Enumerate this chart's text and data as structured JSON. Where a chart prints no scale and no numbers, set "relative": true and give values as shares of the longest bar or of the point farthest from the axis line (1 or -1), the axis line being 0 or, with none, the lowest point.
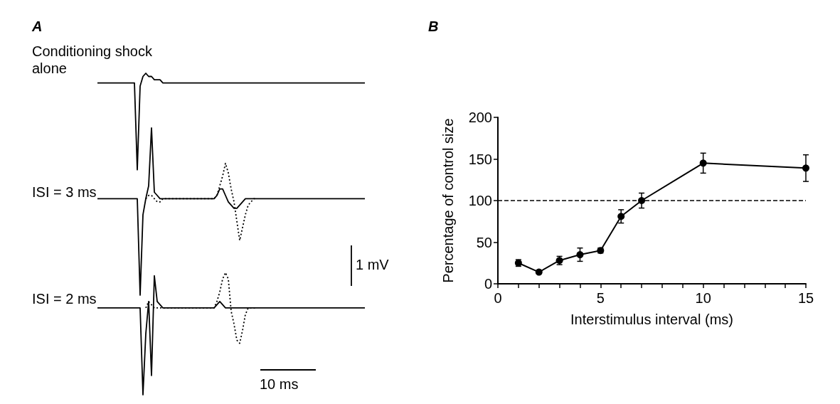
{
  "chart_data": [
    {
      "type": "line",
      "title": "A",
      "relative": true,
      "annotations": [
        "Conditioning shock alone",
        "ISI = 3 ms",
        "ISI = 2 ms",
        "1 mV",
        "10 ms"
      ],
      "categories": [
        null,
        null,
        null,
        null,
        null,
        null,
        null,
        null,
        null,
        null,
        null,
        null,
        null,
        null,
        null,
        null,
        null,
        null,
        null,
        null,
        null,
        null,
        null,
        null,
        null,
        null,
        null,
        null,
        null,
        null,
        null,
        null,
        null,
        null,
        null,
        null,
        null,
        null,
        null,
        null,
        null,
        null,
        null,
        null,
        null,
        null,
        null,
        null,
        null,
        null,
        null,
        null,
        null,
        null,
        null,
        null,
        null,
        null,
        null,
        null,
        null,
        null,
        null,
        null,
        null,
        null,
        null,
        null,
        null,
        null,
        null,
        null,
        null,
        null,
        null,
        null,
        null,
        null,
        null,
        null,
        null,
        null,
        null,
        null,
        null,
        null,
        null,
        null,
        null,
        null,
        null,
        null,
        null,
        null,
        null
      ],
      "series": [
        {
          "color": "#000000",
          "line_style": "solid",
          "values": [
            0.97,
            0.97,
            0.97,
            0.97,
            0.97,
            0.97,
            0.97,
            0.97,
            0.97,
            0.97,
            0.97,
            0.97,
            0.97,
            0.97,
            0.7,
            0.96,
            0.99,
            1,
            0.99,
            0.99,
            0.98,
            0.98,
            0.98,
            0.97,
            0.97,
            0.97,
            0.97,
            0.97,
            0.97,
            0.97,
            0.97,
            0.97,
            0.97,
            0.97,
            0.97,
            0.97,
            0.97,
            0.97,
            0.97,
            0.97,
            0.97,
            0.97,
            0.97,
            0.97,
            0.97,
            0.97,
            0.97,
            0.97,
            0.97,
            0.97,
            0.97,
            0.97,
            0.97,
            0.97,
            0.97,
            0.97,
            0.97,
            0.97,
            0.97,
            0.97,
            0.97,
            0.97,
            0.97,
            0.97,
            0.97,
            0.97,
            0.97,
            0.97,
            0.97,
            0.97,
            0.97,
            0.97,
            0.97,
            0.97,
            0.97,
            0.97,
            0.97,
            0.97,
            0.97,
            0.97,
            0.97,
            0.97,
            0.97,
            0.97,
            0.97,
            0.97,
            0.97,
            0.97,
            0.97,
            0.97,
            0.97,
            0.97,
            0.97,
            0.97,
            0.97
          ]
        },
        {
          "color": "#000000",
          "line_style": "solid",
          "values": [
            0.61,
            0.61,
            0.61,
            0.61,
            0.61,
            0.61,
            0.61,
            0.61,
            0.61,
            0.61,
            0.61,
            0.61,
            0.61,
            0.61,
            0.61,
            0.31,
            0.56,
            0.61,
            0.65,
            0.83,
            0.63,
            0.62,
            0.61,
            0.61,
            0.61,
            0.61,
            0.61,
            0.61,
            0.61,
            0.61,
            0.61,
            0.61,
            0.61,
            0.61,
            0.61,
            0.61,
            0.61,
            0.61,
            0.61,
            0.61,
            0.61,
            0.61,
            0.62,
            0.64,
            0.64,
            0.62,
            0.6,
            0.59,
            0.58,
            0.58,
            0.59,
            0.6,
            0.61,
            0.61,
            0.61,
            0.61,
            0.61,
            0.61,
            0.61,
            0.61,
            0.61,
            0.61,
            0.61,
            0.61,
            0.61,
            0.61,
            0.61,
            0.61,
            0.61,
            0.61,
            0.61,
            0.61,
            0.61,
            0.61,
            0.61,
            0.61,
            0.61,
            0.61,
            0.61,
            0.61,
            0.61,
            0.61,
            0.61,
            0.61,
            0.61,
            0.61,
            0.61,
            0.61,
            0.61,
            0.61,
            0.61,
            0.61,
            0.61,
            0.61,
            0.61
          ]
        },
        {
          "color": "#000000",
          "line_style": "dotted",
          "values": [
            null,
            null,
            null,
            null,
            null,
            null,
            null,
            null,
            null,
            null,
            null,
            null,
            null,
            null,
            null,
            null,
            null,
            0.61,
            0.62,
            0.62,
            0.61,
            0.6,
            0.6,
            0.61,
            0.61,
            0.61,
            0.61,
            0.61,
            0.61,
            0.61,
            0.61,
            0.61,
            0.61,
            0.61,
            0.61,
            0.61,
            0.61,
            0.61,
            0.61,
            0.61,
            0.61,
            0.61,
            0.62,
            0.65,
            0.68,
            0.72,
            0.69,
            0.64,
            0.6,
            0.54,
            0.48,
            0.52,
            0.56,
            0.59,
            0.6,
            0.61,
            0.61,
            null,
            null,
            null,
            null,
            null,
            null,
            null,
            null,
            null,
            null,
            null,
            null,
            null,
            null,
            null,
            null,
            null,
            null,
            null,
            null,
            null,
            null,
            null,
            null,
            null,
            null,
            null,
            null,
            null,
            null,
            null,
            null,
            null,
            null,
            null,
            null,
            null,
            null
          ]
        },
        {
          "color": "#000000",
          "line_style": "solid",
          "values": [
            0.27,
            0.27,
            0.27,
            0.27,
            0.27,
            0.27,
            0.27,
            0.27,
            0.27,
            0.27,
            0.27,
            0.27,
            0.27,
            0.27,
            0.27,
            0.27,
            0,
            0.19,
            0.29,
            0.06,
            0.37,
            0.29,
            0.28,
            0.27,
            0.27,
            0.27,
            0.27,
            0.27,
            0.27,
            0.27,
            0.27,
            0.27,
            0.27,
            0.27,
            0.27,
            0.27,
            0.27,
            0.27,
            0.27,
            0.27,
            0.27,
            0.27,
            0.28,
            0.29,
            0.28,
            0.27,
            0.27,
            0.27,
            0.27,
            0.27,
            0.27,
            0.27,
            0.27,
            0.27,
            0.27,
            0.27,
            0.27,
            0.27,
            0.27,
            0.27,
            0.27,
            0.27,
            0.27,
            0.27,
            0.27,
            0.27,
            0.27,
            0.27,
            0.27,
            0.27,
            0.27,
            0.27,
            0.27,
            0.27,
            0.27,
            0.27,
            0.27,
            0.27,
            0.27,
            0.27,
            0.27,
            0.27,
            0.27,
            0.27,
            0.27,
            0.27,
            0.27,
            0.27,
            0.27,
            0.27,
            0.27,
            0.27,
            0.27,
            0.27,
            0.27
          ]
        },
        {
          "color": "#000000",
          "line_style": "dotted",
          "values": [
            null,
            null,
            null,
            null,
            null,
            null,
            null,
            null,
            null,
            null,
            null,
            null,
            null,
            null,
            null,
            null,
            null,
            0.27,
            0.29,
            0.28,
            0.27,
            0.27,
            0.27,
            0.27,
            0.27,
            0.27,
            0.27,
            0.27,
            0.27,
            0.27,
            0.27,
            0.27,
            0.27,
            0.27,
            0.27,
            0.27,
            0.27,
            0.27,
            0.27,
            0.27,
            0.27,
            0.27,
            0.29,
            0.32,
            0.36,
            0.38,
            0.36,
            0.26,
            0.22,
            0.17,
            0.16,
            0.2,
            0.25,
            0.27,
            0.27,
            0.27,
            0.27,
            null,
            null,
            null,
            null,
            null,
            null,
            null,
            null,
            null,
            null,
            null,
            null,
            null,
            null,
            null,
            null,
            null,
            null,
            null,
            null,
            null,
            null,
            null,
            null,
            null,
            null,
            null,
            null,
            null,
            null,
            null,
            null,
            null,
            null,
            null,
            null,
            null,
            null
          ]
        }
      ],
      "marker": "none",
      "grid": false
    },
    {
      "type": "line",
      "title": "B",
      "xlabel": "Interstimulus interval (ms)",
      "ylabel": "Percentage of control size",
      "x": [
        1,
        2,
        3,
        4,
        5,
        6,
        7,
        10,
        15
      ],
      "series": [
        {
          "color": "#000000",
          "values": [
            25,
            14,
            28,
            35,
            40,
            81,
            100,
            145,
            139
          ],
          "errors": [
            4,
            2,
            5,
            8,
            3,
            8,
            9,
            12,
            16
          ]
        }
      ],
      "xlim": [
        0,
        15
      ],
      "xticks": [
        0,
        {
          "value": 1,
          "label": null
        },
        {
          "value": 2,
          "label": null
        },
        {
          "value": 3,
          "label": null
        },
        {
          "value": 4,
          "label": null
        },
        5,
        {
          "value": 6,
          "label": null
        },
        {
          "value": 7,
          "label": null
        },
        {
          "value": 8,
          "label": null
        },
        {
          "value": 9,
          "label": null
        },
        10,
        {
          "value": 11,
          "label": null
        },
        {
          "value": 12,
          "label": null
        },
        {
          "value": 13,
          "label": null
        },
        {
          "value": 14,
          "label": null
        },
        15
      ],
      "ylim": [
        0,
        200
      ],
      "yticks": [
        0,
        50,
        100,
        150,
        200
      ],
      "ref_lines": [
        {
          "axis": "y",
          "value": 100,
          "line_style": "dashed",
          "color": "#000000"
        }
      ],
      "marker": "circle",
      "line_style": "solid",
      "grid": false
    }
  ]
}
